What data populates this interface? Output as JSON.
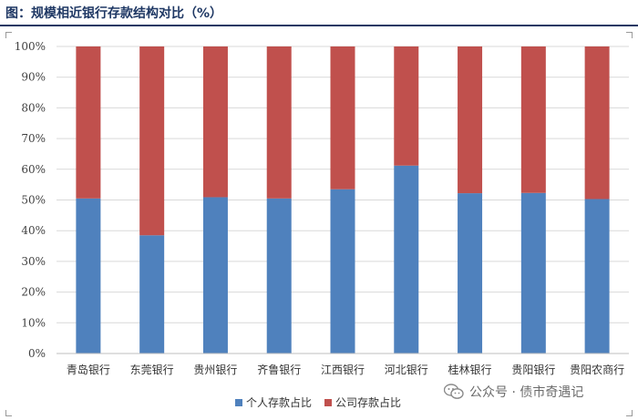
{
  "title": "图：规模相近银行存款结构对比（%）",
  "watermark": "公众号 · 债市奇遇记",
  "chart_data": {
    "type": "bar",
    "stacked": true,
    "categories": [
      "青岛银行",
      "东莞银行",
      "贵州银行",
      "齐鲁银行",
      "江西银行",
      "河北银行",
      "桂林银行",
      "贵阳银行",
      "贵阳农商行"
    ],
    "series": [
      {
        "name": "个人存款占比",
        "color": "#4f81bd",
        "values": [
          50.5,
          38.5,
          50.9,
          50.5,
          53.5,
          61.2,
          52.2,
          52.3,
          50.3
        ]
      },
      {
        "name": "公司存款占比",
        "color": "#c0504d",
        "values": [
          49.5,
          61.5,
          49.1,
          49.5,
          46.5,
          38.8,
          47.8,
          47.7,
          49.7
        ]
      }
    ],
    "ylim": [
      0,
      100
    ],
    "yticks": [
      "0%",
      "10%",
      "20%",
      "30%",
      "40%",
      "50%",
      "60%",
      "70%",
      "80%",
      "90%",
      "100%"
    ],
    "grid": true,
    "legend": "bottom"
  }
}
